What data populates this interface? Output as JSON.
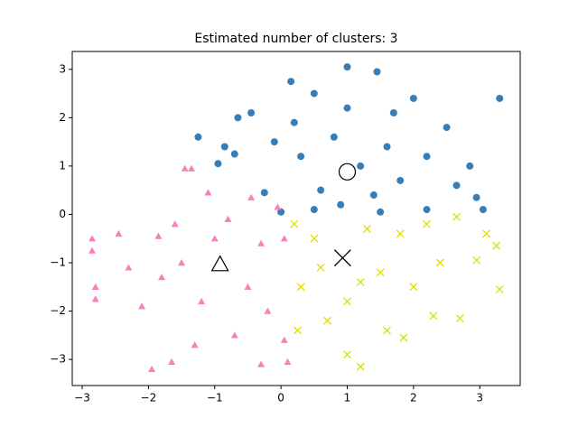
{
  "chart_data": {
    "type": "scatter",
    "title": "Estimated number of clusters: 3",
    "xlim": [
      -3.15,
      3.61
    ],
    "ylim": [
      -3.54,
      3.37
    ],
    "xticks": [
      {
        "value": -3,
        "label": "−3"
      },
      {
        "value": -2,
        "label": "−2"
      },
      {
        "value": -1,
        "label": "−1"
      },
      0,
      1,
      2,
      3
    ],
    "yticks": [
      {
        "value": -3,
        "label": "−3"
      },
      {
        "value": -2,
        "label": "−2"
      },
      {
        "value": -1,
        "label": "−1"
      },
      0,
      1,
      2,
      3
    ],
    "series": [
      {
        "marker": "o",
        "color": "#377eb8",
        "x": [
          3.3,
          1.0,
          1.45,
          0.15,
          -1.25,
          -0.65,
          -0.45,
          -0.7,
          -0.95,
          -0.85,
          2.0,
          2.5,
          2.85,
          3.05,
          2.95,
          2.65,
          -0.25,
          0.0,
          0.5,
          1.5,
          2.2,
          0.3,
          0.8,
          1.2,
          1.6,
          0.6,
          1.0,
          1.8,
          0.2,
          -0.1,
          1.4,
          0.9,
          2.2,
          0.5,
          1.7
        ],
        "y": [
          2.4,
          3.05,
          2.95,
          2.75,
          1.6,
          2.0,
          2.1,
          1.25,
          1.05,
          1.4,
          2.4,
          1.8,
          1.0,
          0.1,
          0.35,
          0.6,
          0.45,
          0.05,
          0.1,
          0.05,
          0.1,
          1.2,
          1.6,
          1.0,
          1.4,
          0.5,
          2.2,
          0.7,
          1.9,
          1.5,
          0.4,
          0.2,
          1.2,
          2.5,
          2.1
        ]
      },
      {
        "marker": "x",
        "color": "#dede00",
        "x": [
          3.3,
          3.25,
          3.1,
          2.95,
          2.65,
          2.7,
          1.85,
          1.2,
          1.0,
          0.25,
          2.3,
          2.0,
          1.5,
          0.5,
          0.3,
          1.0,
          1.8,
          2.4,
          0.7,
          1.3,
          0.2,
          1.6,
          2.2,
          0.6,
          1.2
        ],
        "y": [
          -1.55,
          -0.65,
          -0.4,
          -0.95,
          -0.05,
          -2.15,
          -2.55,
          -3.15,
          -2.9,
          -2.4,
          -2.1,
          -1.5,
          -1.2,
          -0.5,
          -1.5,
          -1.8,
          -0.4,
          -1.0,
          -2.2,
          -0.3,
          -0.2,
          -2.4,
          -0.2,
          -1.1,
          -1.4
        ]
      },
      {
        "marker": "^",
        "color": "#f781bf",
        "x": [
          -2.85,
          -2.85,
          -2.8,
          -2.8,
          -1.95,
          -1.65,
          -0.3,
          0.1,
          -1.85,
          -1.45,
          -1.35,
          -1.1,
          -0.45,
          -0.05,
          -2.45,
          -2.1,
          -1.3,
          -0.7,
          0.05,
          0.05,
          -1.5,
          -1.0,
          -0.5,
          -1.8,
          -0.3,
          -1.2,
          -0.8,
          -2.3,
          -0.2,
          -1.6
        ],
        "y": [
          -0.5,
          -0.75,
          -1.5,
          -1.75,
          -3.2,
          -3.05,
          -3.1,
          -3.05,
          -0.45,
          0.95,
          0.95,
          0.45,
          0.35,
          0.15,
          -0.4,
          -1.9,
          -2.7,
          -2.5,
          -2.6,
          -0.5,
          -1.0,
          -0.5,
          -1.5,
          -1.3,
          -0.6,
          -1.8,
          -0.1,
          -1.1,
          -2.0,
          -0.2
        ]
      }
    ],
    "centers": {
      "x": [
        1.0,
        0.93,
        -0.92
      ],
      "y": [
        0.88,
        -0.9,
        -1.03
      ],
      "color": "#000000"
    }
  }
}
